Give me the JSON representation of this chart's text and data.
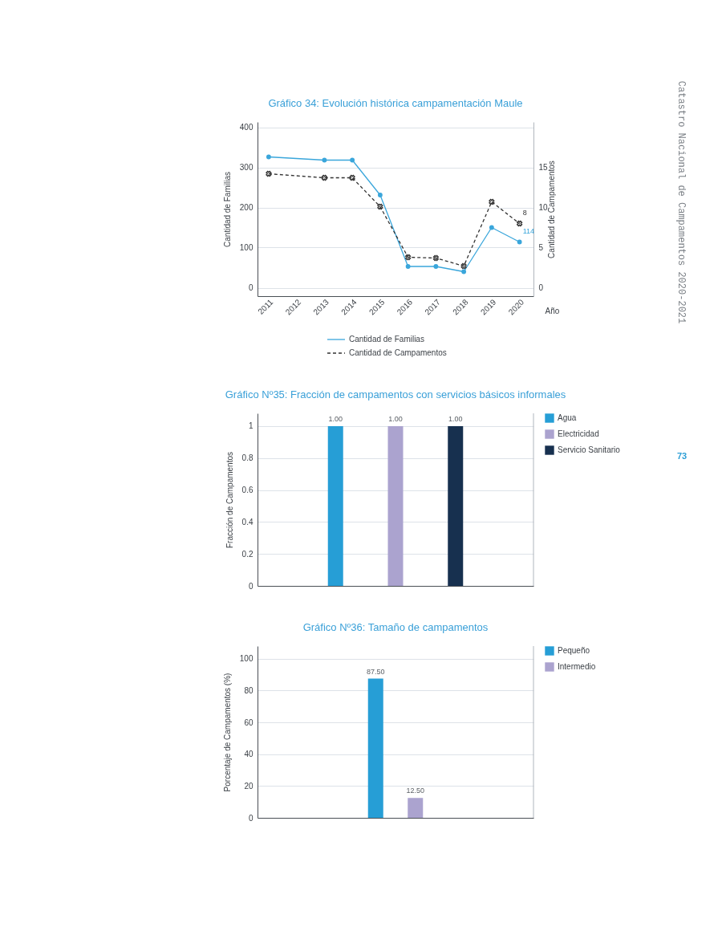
{
  "chart_data": [
    {
      "type": "line",
      "title": "Gráfico 34: Evolución histórica campamentación Maule",
      "xlabel": "Año",
      "ylabel": "Cantidad de Familias",
      "y2label": "Cantidad de Campamentos",
      "x": [
        2011,
        2013,
        2014,
        2015,
        2016,
        2017,
        2018,
        2019,
        2020
      ],
      "series": [
        {
          "name": "Cantidad de Familias",
          "color": "#3aa6db",
          "values": [
            326,
            318,
            318,
            231,
            53,
            53,
            40,
            150,
            114
          ],
          "marker": "circle",
          "line_style": "solid",
          "value_labels": [
            null,
            null,
            null,
            null,
            null,
            null,
            null,
            null,
            "114"
          ]
        },
        {
          "name": "Cantidad de Campamentos",
          "color": "#333333",
          "axis": "y2",
          "values": [
            14.2,
            13.7,
            13.7,
            10.1,
            3.8,
            3.7,
            2.7,
            10.7,
            8
          ],
          "marker": "cross",
          "line_style": "dashed",
          "value_labels": [
            null,
            null,
            null,
            null,
            null,
            null,
            null,
            null,
            "8"
          ]
        }
      ],
      "xlim": [
        2010.6,
        2020.5
      ],
      "xticks": [
        2011,
        2012,
        2013,
        2014,
        2015,
        2016,
        2017,
        2018,
        2019,
        2020
      ],
      "ylim": [
        -21,
        413
      ],
      "yticks": [
        0,
        100,
        200,
        300,
        400
      ],
      "y2lim": [
        -1.05,
        20.65
      ],
      "y2ticks": [
        0,
        5,
        10,
        15
      ],
      "grid": "y",
      "legend": "bottom",
      "annotations": [
        "Catastro Nacional de Campamentos 2020-2021"
      ]
    },
    {
      "type": "bar",
      "title": "Gráfico Nº35: Fracción de campamentos con servicios básicos informales",
      "ylabel": "Fracción de Campamentos",
      "categories": [
        null
      ],
      "series": [
        {
          "name": "Agua",
          "color": "#269ed6",
          "values": [
            1.0
          ],
          "value_labels": [
            "1.00"
          ]
        },
        {
          "name": "Electricidad",
          "color": "#aba3cf",
          "values": [
            1.0
          ],
          "value_labels": [
            "1.00"
          ]
        },
        {
          "name": "Servicio Sanitario",
          "color": "#17304f",
          "values": [
            1.0
          ],
          "value_labels": [
            "1.00"
          ]
        }
      ],
      "ylim": [
        0,
        1.08
      ],
      "yticks": [
        0,
        0.2,
        0.4,
        0.6,
        0.8,
        1
      ],
      "grid": "y",
      "legend": "right",
      "tick_labels": "y",
      "annotations": [
        "73"
      ]
    },
    {
      "type": "bar",
      "title": "Gráfico Nº36: Tamaño de campamentos",
      "ylabel": "Porcentaje de Campamentos (%)",
      "categories": [
        null
      ],
      "series": [
        {
          "name": "Pequeño",
          "color": "#269ed6",
          "values": [
            87.5
          ],
          "value_labels": [
            "87.50"
          ]
        },
        {
          "name": "Intermedio",
          "color": "#aba3cf",
          "values": [
            12.5
          ],
          "value_labels": [
            "12.50"
          ]
        }
      ],
      "ylim": [
        0,
        108
      ],
      "yticks": [
        0,
        20,
        40,
        60,
        80,
        100
      ],
      "grid": "y",
      "legend": "right",
      "tick_labels": "y"
    }
  ]
}
